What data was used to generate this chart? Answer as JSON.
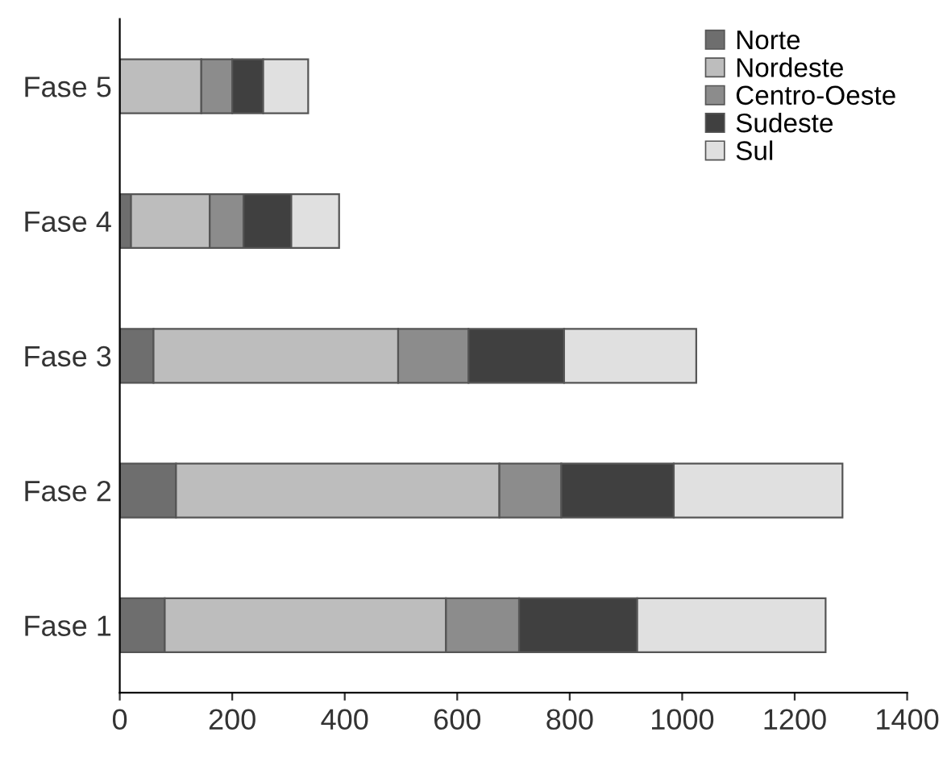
{
  "chart_data": {
    "type": "bar",
    "orientation": "horizontal",
    "stacked": true,
    "categories": [
      "Fase 5",
      "Fase 4",
      "Fase 3",
      "Fase 2",
      "Fase 1"
    ],
    "series": [
      {
        "name": "Norte",
        "color": "#6e6e6e",
        "values": [
          0,
          20,
          60,
          100,
          80
        ]
      },
      {
        "name": "Nordeste",
        "color": "#bdbdbd",
        "values": [
          145,
          140,
          435,
          575,
          500
        ]
      },
      {
        "name": "Centro-Oeste",
        "color": "#8c8c8c",
        "values": [
          55,
          60,
          125,
          110,
          130
        ]
      },
      {
        "name": "Sudeste",
        "color": "#404040",
        "values": [
          55,
          85,
          170,
          200,
          210
        ]
      },
      {
        "name": "Sul",
        "color": "#e0e0e0",
        "values": [
          80,
          85,
          235,
          300,
          335
        ]
      }
    ],
    "xlim": [
      0,
      1400
    ],
    "xticks": [
      0,
      200,
      400,
      600,
      800,
      1000,
      1200,
      1400
    ],
    "grid": false,
    "legend": "top right"
  }
}
